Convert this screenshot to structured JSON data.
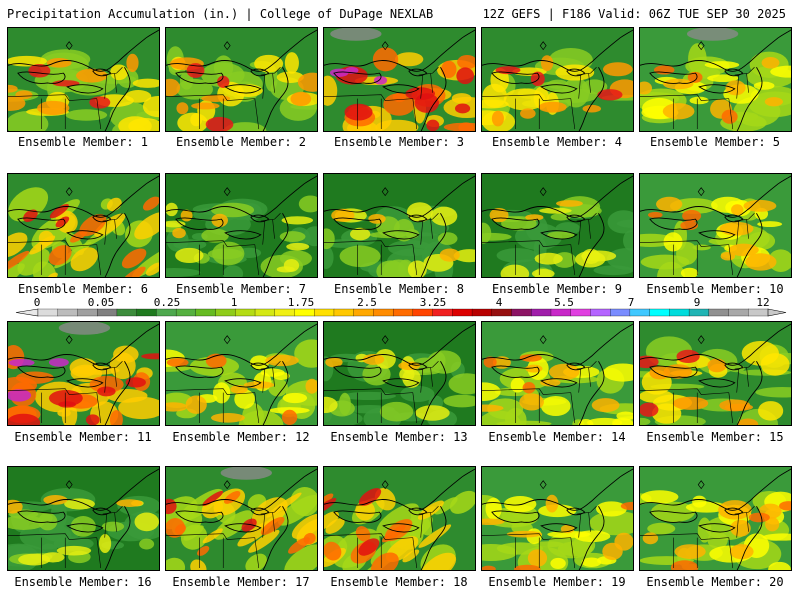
{
  "header": {
    "left": "Precipitation Accumulation (in.) | College of DuPage NEXLAB",
    "right": "12Z GEFS | F186 Valid: 06Z TUE SEP 30 2025"
  },
  "legend": {
    "tick_labels": [
      "0",
      "0.05",
      "0.25",
      "1",
      "1.75",
      "2.5",
      "3.25",
      "4",
      "5.5",
      "7",
      "9",
      "12"
    ],
    "colors": [
      "#dcdcdc",
      "#bcbcbc",
      "#a0a0a0",
      "#808080",
      "#3c8c3c",
      "#1f7a1f",
      "#4ea84e",
      "#55b040",
      "#66bb22",
      "#8fcc1a",
      "#b4dc14",
      "#d4e814",
      "#f0f014",
      "#ffff00",
      "#ffe000",
      "#ffc800",
      "#ffa800",
      "#ff8c00",
      "#ff6c00",
      "#ff4400",
      "#f02020",
      "#dc0000",
      "#b80000",
      "#961010",
      "#8c1464",
      "#a01eaa",
      "#c828c8",
      "#e040e0",
      "#b464ff",
      "#7a8cff",
      "#40c8ff",
      "#00ffff",
      "#00dcdc",
      "#20b4b4",
      "#909090",
      "#a8a8a8",
      "#c8c8c8"
    ]
  },
  "members": [
    {
      "label": "Ensemble Member: 1",
      "scheme": "lowred"
    },
    {
      "label": "Ensemble Member: 2",
      "scheme": "lowred"
    },
    {
      "label": "Ensemble Member: 3",
      "scheme": "magenta"
    },
    {
      "label": "Ensemble Member: 4",
      "scheme": "lowred"
    },
    {
      "label": "Ensemble Member: 5",
      "scheme": "yellow"
    },
    {
      "label": "Ensemble Member: 6",
      "scheme": "diagonal"
    },
    {
      "label": "Ensemble Member: 7",
      "scheme": "green"
    },
    {
      "label": "Ensemble Member: 8",
      "scheme": "green"
    },
    {
      "label": "Ensemble Member: 9",
      "scheme": "green"
    },
    {
      "label": "Ensemble Member: 10",
      "scheme": "yellow"
    },
    {
      "label": "Ensemble Member: 11",
      "scheme": "magenta"
    },
    {
      "label": "Ensemble Member: 12",
      "scheme": "yellow"
    },
    {
      "label": "Ensemble Member: 13",
      "scheme": "green"
    },
    {
      "label": "Ensemble Member: 14",
      "scheme": "yellow"
    },
    {
      "label": "Ensemble Member: 15",
      "scheme": "lowred"
    },
    {
      "label": "Ensemble Member: 16",
      "scheme": "green"
    },
    {
      "label": "Ensemble Member: 17",
      "scheme": "diagonal"
    },
    {
      "label": "Ensemble Member: 18",
      "scheme": "diagonal"
    },
    {
      "label": "Ensemble Member: 19",
      "scheme": "yellow"
    },
    {
      "label": "Ensemble Member: 20",
      "scheme": "yellow"
    }
  ]
}
